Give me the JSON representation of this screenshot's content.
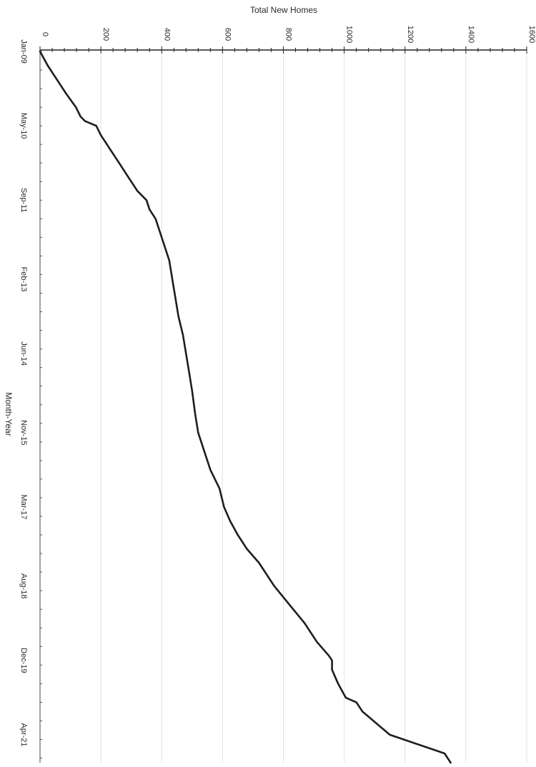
{
  "chart_data": {
    "type": "line",
    "orientation": "rotated-90-clockwise",
    "title": "",
    "xlabel": "Month-Year",
    "ylabel": "Total New Homes",
    "ylim": [
      0,
      1600
    ],
    "yticks": [
      0,
      200,
      400,
      600,
      800,
      1000,
      1200,
      1400,
      1600
    ],
    "ytick_labels": [
      "0",
      "200",
      "400",
      "600",
      "800",
      "1000",
      "1200",
      "1400",
      "1600"
    ],
    "x_tick_labels": [
      "Jan-09",
      "May-10",
      "Sep-11",
      "Feb-13",
      "Jun-14",
      "Nov-15",
      "Mar-17",
      "Aug-18",
      "Dec-19",
      "Apr-21"
    ],
    "grid": "vertical gridlines at value ticks",
    "legend": "none",
    "line_color": "#1e1e1e",
    "gridline_color": "#e2e2e2",
    "series": [
      {
        "x": [
          "Jan-09",
          "Apr-09",
          "Jul-09",
          "Oct-09",
          "Jan-10",
          "Mar-10",
          "Apr-10",
          "May-10",
          "Jul-10",
          "Sep-10",
          "Nov-10",
          "Jan-11",
          "Apr-11",
          "Jul-11",
          "Sep-11",
          "Nov-11",
          "Jan-12",
          "Apr-12",
          "Jul-12",
          "Oct-12",
          "Feb-13",
          "Jun-13",
          "Oct-13",
          "Feb-14",
          "Jun-14",
          "Oct-14",
          "Feb-15",
          "Jul-15",
          "Nov-15",
          "Mar-16",
          "Jul-16",
          "Nov-16",
          "Mar-17",
          "Jun-17",
          "Sep-17",
          "Dec-17",
          "Mar-18",
          "Aug-18",
          "Dec-18",
          "Apr-19",
          "Aug-19",
          "Nov-19",
          "Dec-19",
          "Feb-20",
          "May-20",
          "Aug-20",
          "Sep-20",
          "Nov-20",
          "Apr-21",
          "Aug-21",
          "Sep-21",
          "Oct-21"
        ],
        "values": [
          0,
          25,
          55,
          85,
          118,
          133,
          148,
          185,
          200,
          220,
          240,
          260,
          290,
          320,
          350,
          360,
          380,
          395,
          410,
          425,
          435,
          445,
          455,
          470,
          480,
          490,
          500,
          510,
          520,
          540,
          560,
          590,
          605,
          625,
          650,
          680,
          720,
          770,
          820,
          870,
          910,
          950,
          960,
          960,
          980,
          1005,
          1040,
          1060,
          1150,
          1330,
          1340,
          1350
        ]
      }
    ]
  }
}
